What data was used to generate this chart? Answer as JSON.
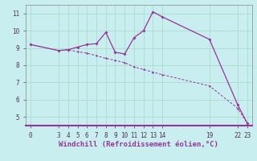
{
  "xlabel": "Windchill (Refroidissement éolien,°C)",
  "bg_color": "#c8eef0",
  "line_color": "#993399",
  "grid_color": "#aaddcc",
  "line1_x": [
    0,
    3,
    4,
    5,
    6,
    7,
    8,
    9,
    10,
    11,
    12,
    13,
    14,
    19,
    22,
    23
  ],
  "line1_y": [
    9.2,
    8.85,
    8.9,
    9.05,
    9.2,
    9.25,
    9.9,
    8.75,
    8.65,
    9.6,
    10.0,
    11.1,
    10.8,
    9.5,
    5.7,
    4.65
  ],
  "line2_x": [
    0,
    3,
    4,
    5,
    6,
    7,
    8,
    9,
    10,
    11,
    12,
    13,
    14,
    19,
    22,
    23
  ],
  "line2_y": [
    9.2,
    8.85,
    8.9,
    8.78,
    8.7,
    8.55,
    8.4,
    8.28,
    8.15,
    7.9,
    7.75,
    7.6,
    7.45,
    6.8,
    5.5,
    4.65
  ],
  "ylim": [
    4.5,
    11.5
  ],
  "yticks": [
    5,
    6,
    7,
    8,
    9,
    10,
    11
  ],
  "xticks": [
    0,
    3,
    4,
    5,
    6,
    7,
    8,
    9,
    10,
    11,
    12,
    13,
    14,
    19,
    22,
    23
  ],
  "tick_fontsize": 5.5,
  "xlabel_fontsize": 6.5,
  "xlabel_color": "#993399",
  "spine_color": "#993399"
}
